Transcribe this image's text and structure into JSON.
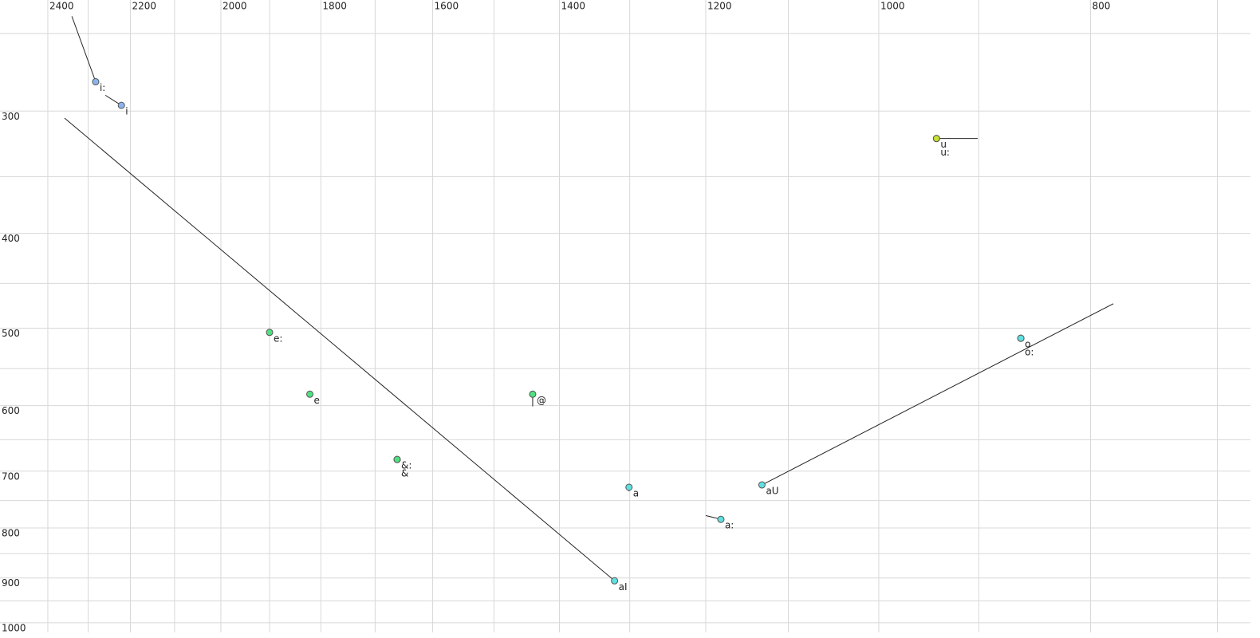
{
  "chart_data": {
    "type": "scatter",
    "xscale": "log",
    "yscale": "log",
    "grid": true,
    "xlim": [
      2524,
      676
    ],
    "ylim": [
      231,
      1023
    ],
    "xticks": [
      2400,
      2200,
      2000,
      1800,
      1600,
      1400,
      1200,
      1000,
      800
    ],
    "xminor": [
      2300,
      2100,
      1900,
      1700,
      1500,
      1300,
      1100,
      900,
      700
    ],
    "yticks": [
      300,
      400,
      500,
      600,
      700,
      800,
      900,
      1000
    ],
    "yminor": [
      250,
      350,
      450,
      550,
      650,
      750,
      850,
      950
    ],
    "series": [
      {
        "name": "i:",
        "color": "#8ab4f0",
        "x": [
          2282,
          2340
        ],
        "values": [
          280,
          240
        ]
      },
      {
        "name": "i",
        "color": "#8ab4f0",
        "x": [
          2221,
          2259
        ],
        "values": [
          296,
          289
        ]
      },
      {
        "name": "u",
        "color": "#c8e030",
        "x": [
          941,
          901
        ],
        "values": [
          320,
          320
        ]
      },
      {
        "name": "u:",
        "color": "#c8e030",
        "x": [
          941
        ],
        "values": [
          320
        ]
      },
      {
        "name": "e:",
        "color": "#50e080",
        "x": [
          1900
        ],
        "values": [
          505
        ]
      },
      {
        "name": "e",
        "color": "#50e080",
        "x": [
          1821
        ],
        "values": [
          584
        ]
      },
      {
        "name": "@",
        "color": "#50e080",
        "x": [
          1440,
          1440
        ],
        "values": [
          584,
          601
        ]
      },
      {
        "name": "&:",
        "color": "#50e080",
        "x": [
          1661
        ],
        "values": [
          681
        ]
      },
      {
        "name": "&",
        "color": "#50e080",
        "x": [
          1661
        ],
        "values": [
          681
        ]
      },
      {
        "name": "a",
        "color": "#60e0e0",
        "x": [
          1301,
          1301
        ],
        "values": [
          727,
          734
        ]
      },
      {
        "name": "a:",
        "color": "#60e0e0",
        "x": [
          1181,
          1200
        ],
        "values": [
          784,
          777
        ]
      },
      {
        "name": "aU",
        "color": "#60e0e0",
        "x": [
          1131,
          781
        ],
        "values": [
          723,
          472
        ]
      },
      {
        "name": "aI",
        "color": "#60e0e0",
        "x": [
          1321,
          2358
        ],
        "values": [
          906,
          305
        ]
      },
      {
        "name": "o",
        "color": "#60e0e0",
        "x": [
          861
        ],
        "values": [
          512
        ]
      },
      {
        "name": "o:",
        "color": "#60e0e0",
        "x": [
          861
        ],
        "values": [
          512
        ]
      }
    ]
  }
}
